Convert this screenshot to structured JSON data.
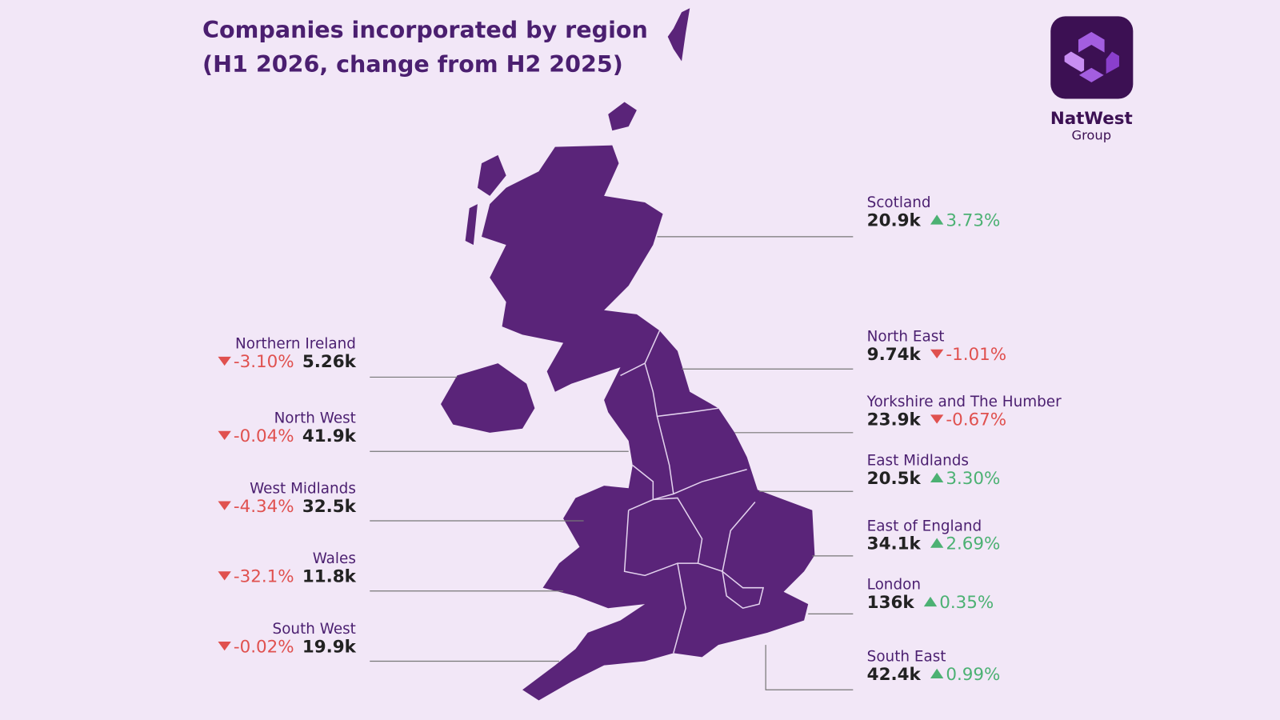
{
  "header": {
    "title_lines": [
      "Companies incorporated by region",
      "(H1 2026, change from H2 2025)"
    ]
  },
  "logo": {
    "name": "NatWest",
    "subtitle": "Group"
  },
  "regions": [
    {
      "name": "Scotland",
      "count": "20.9k",
      "change": "3.73%"
    },
    {
      "name": "North East",
      "count": "9.74k",
      "change": "-1.01%"
    },
    {
      "name": "Yorkshire and The Humber",
      "count": "23.9k",
      "change": "-0.67%"
    },
    {
      "name": "East Midlands",
      "count": "20.5k",
      "change": "3.30%"
    },
    {
      "name": "East of England",
      "count": "34.1k",
      "change": "2.69%"
    },
    {
      "name": "London",
      "count": "136k",
      "change": "0.35%"
    },
    {
      "name": "South East",
      "count": "42.4k",
      "change": "0.99%"
    },
    {
      "name": "Northern Ireland",
      "count": "5.26k",
      "change": "-3.10%"
    },
    {
      "name": "North West",
      "count": "41.9k",
      "change": "-0.04%"
    },
    {
      "name": "West Midlands",
      "count": "32.5k",
      "change": "-4.34%"
    },
    {
      "name": "Wales",
      "count": "11.8k",
      "change": "-32.1%"
    },
    {
      "name": "South West",
      "count": "19.9k",
      "change": "-0.02%"
    }
  ]
}
